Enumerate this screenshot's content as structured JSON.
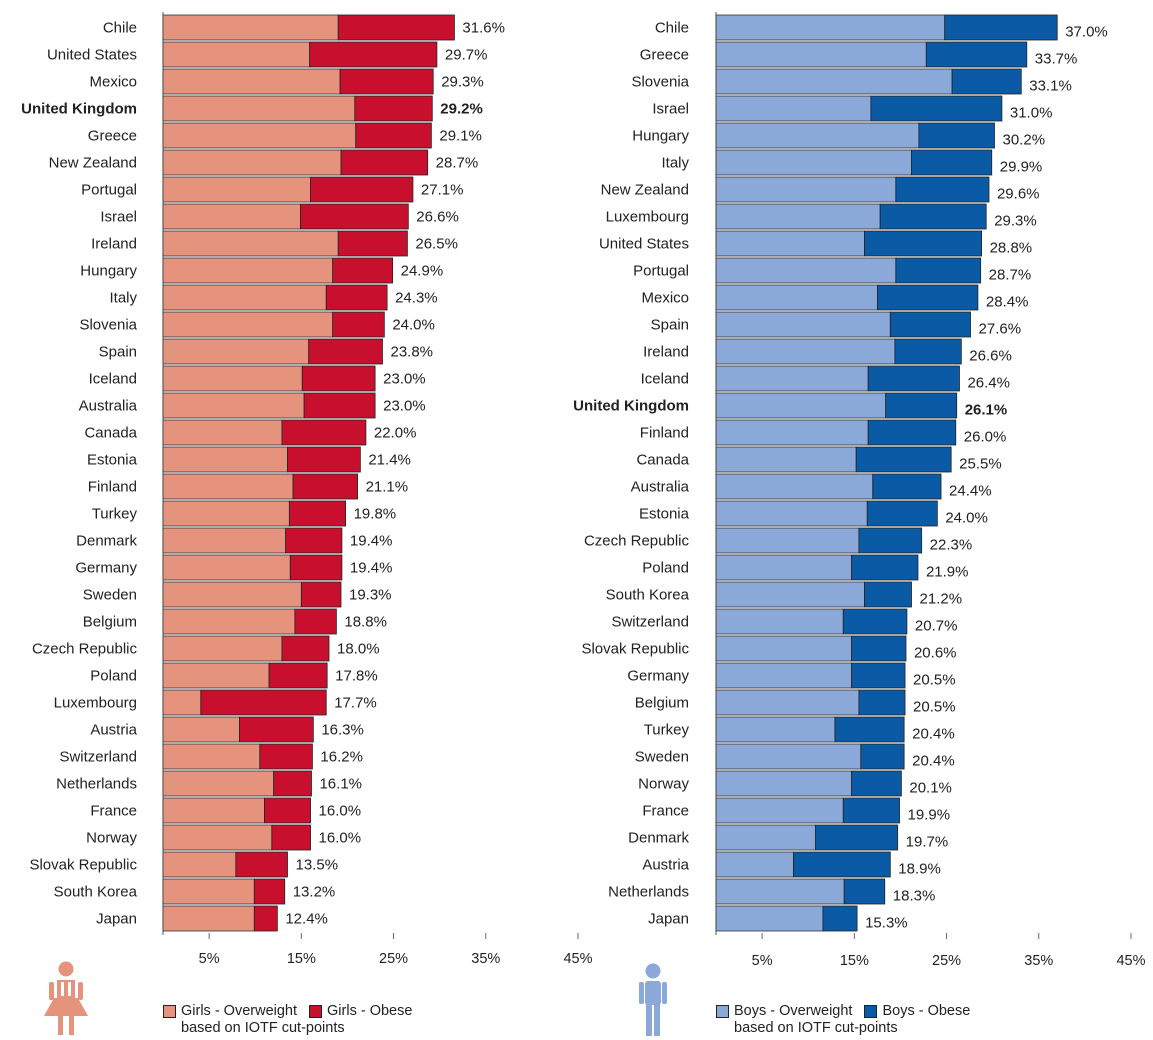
{
  "colors": {
    "girls_overweight": "#e6937e",
    "girls_obese": "#c8102e",
    "boys_overweight": "#8aa8d8",
    "boys_obese": "#0a5aa5",
    "grid": "#999999",
    "text": "#222222"
  },
  "chart_data": [
    {
      "type": "bar",
      "orientation": "horizontal",
      "stacked": true,
      "categories": [
        "Chile",
        "United States",
        "Mexico",
        "United Kingdom",
        "Greece",
        "New Zealand",
        "Portugal",
        "Israel",
        "Ireland",
        "Hungary",
        "Italy",
        "Slovenia",
        "Spain",
        "Iceland",
        "Australia",
        "Canada",
        "Estonia",
        "Finland",
        "Turkey",
        "Denmark",
        "Germany",
        "Sweden",
        "Belgium",
        "Czech Republic",
        "Poland",
        "Luxembourg",
        "Austria",
        "Switzerland",
        "Netherlands",
        "France",
        "Norway",
        "Slovak Republic",
        "South Korea",
        "Japan"
      ],
      "highlight": "United Kingdom",
      "series": [
        {
          "name": "Girls - Overweight",
          "color": "#e6937e",
          "values": [
            19.0,
            15.9,
            19.2,
            20.8,
            20.9,
            19.3,
            16.0,
            14.9,
            19.0,
            18.4,
            17.7,
            18.4,
            15.8,
            15.1,
            15.3,
            12.9,
            13.5,
            14.1,
            13.7,
            13.3,
            13.8,
            15.0,
            14.3,
            12.9,
            11.5,
            4.1,
            8.3,
            10.5,
            12.0,
            11.0,
            11.8,
            7.9,
            9.9,
            9.9
          ]
        },
        {
          "name": "Girls - Obese",
          "color": "#c8102e",
          "values": [
            12.6,
            13.8,
            10.1,
            8.4,
            8.2,
            9.4,
            11.1,
            11.7,
            7.5,
            6.5,
            6.6,
            5.6,
            8.0,
            7.9,
            7.7,
            9.1,
            7.9,
            7.0,
            6.1,
            6.1,
            5.6,
            4.3,
            4.5,
            5.1,
            6.3,
            13.6,
            8.0,
            5.7,
            4.1,
            5.0,
            4.2,
            5.6,
            3.3,
            2.5
          ]
        }
      ],
      "totals_labels": [
        "31.6%",
        "29.7%",
        "29.3%",
        "29.2%",
        "29.1%",
        "28.7%",
        "27.1%",
        "26.6%",
        "26.5%",
        "24.9%",
        "24.3%",
        "24.0%",
        "23.8%",
        "23.0%",
        "23.0%",
        "22.0%",
        "21.4%",
        "21.1%",
        "19.8%",
        "19.4%",
        "19.4%",
        "19.3%",
        "18.8%",
        "18.0%",
        "17.8%",
        "17.7%",
        "16.3%",
        "16.2%",
        "16.1%",
        "16.0%",
        "16.0%",
        "13.5%",
        "13.2%",
        "12.4%"
      ],
      "xlim": [
        0,
        45
      ],
      "x_ticks": [
        "5%",
        "15%",
        "25%",
        "35%",
        "45%"
      ],
      "x_tick_values": [
        5,
        15,
        25,
        35,
        45
      ],
      "legend_note": "based on IOTF cut-points",
      "icon": "girl-figure-icon"
    },
    {
      "type": "bar",
      "orientation": "horizontal",
      "stacked": true,
      "categories": [
        "Chile",
        "Greece",
        "Slovenia",
        "Israel",
        "Hungary",
        "Italy",
        "New Zealand",
        "Luxembourg",
        "United States",
        "Portugal",
        "Mexico",
        "Spain",
        "Ireland",
        "Iceland",
        "United Kingdom",
        "Finland",
        "Canada",
        "Australia",
        "Estonia",
        "Czech Republic",
        "Poland",
        "South Korea",
        "Switzerland",
        "Slovak Republic",
        "Germany",
        "Belgium",
        "Turkey",
        "Sweden",
        "Norway",
        "France",
        "Denmark",
        "Austria",
        "Netherlands",
        "Japan"
      ],
      "highlight": "United Kingdom",
      "series": [
        {
          "name": "Boys - Overweight",
          "color": "#8aa8d8",
          "values": [
            24.8,
            22.8,
            25.6,
            16.8,
            22.0,
            21.2,
            19.5,
            17.8,
            16.1,
            19.5,
            17.5,
            18.9,
            19.4,
            16.5,
            18.4,
            16.5,
            15.2,
            17.0,
            16.4,
            15.5,
            14.7,
            16.1,
            13.8,
            14.7,
            14.7,
            15.5,
            12.9,
            15.7,
            14.7,
            13.8,
            10.8,
            8.4,
            13.9,
            11.6
          ]
        },
        {
          "name": "Boys - Obese",
          "color": "#0a5aa5",
          "values": [
            12.2,
            10.9,
            7.5,
            14.2,
            8.2,
            8.7,
            10.1,
            11.5,
            12.7,
            9.2,
            10.9,
            8.7,
            7.2,
            9.9,
            7.7,
            9.5,
            10.3,
            7.4,
            7.6,
            6.8,
            7.2,
            5.1,
            6.9,
            5.9,
            5.8,
            5.0,
            7.5,
            4.7,
            5.4,
            6.1,
            8.9,
            10.5,
            4.4,
            3.7
          ]
        }
      ],
      "totals_labels": [
        "37.0%",
        "33.7%",
        "33.1%",
        "31.0%",
        "30.2%",
        "29.9%",
        "29.6%",
        "29.3%",
        "28.8%",
        "28.7%",
        "28.4%",
        "27.6%",
        "26.6%",
        "26.4%",
        "26.1%",
        "26.0%",
        "25.5%",
        "24.4%",
        "24.0%",
        "22.3%",
        "21.9%",
        "21.2%",
        "20.7%",
        "20.6%",
        "20.5%",
        "20.5%",
        "20.4%",
        "20.4%",
        "20.1%",
        "19.9%",
        "19.7%",
        "18.9%",
        "18.3%",
        "15.3%"
      ],
      "xlim": [
        0,
        45
      ],
      "x_ticks": [
        "5%",
        "15%",
        "25%",
        "35%",
        "45%"
      ],
      "x_tick_values": [
        5,
        15,
        25,
        35,
        45
      ],
      "legend_note": "based on IOTF cut-points",
      "icon": "boy-figure-icon"
    }
  ]
}
